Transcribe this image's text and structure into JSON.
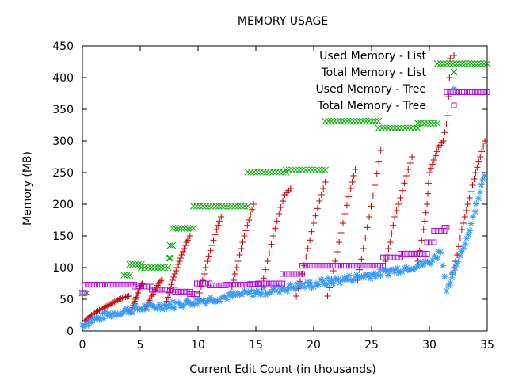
{
  "chart_data": {
    "type": "scatter",
    "title": "MEMORY USAGE",
    "xlabel": "Current Edit Count (in thousands)",
    "ylabel": "Memory (MB)",
    "xlim": [
      0,
      35
    ],
    "ylim": [
      0,
      450
    ],
    "xticks": [
      0,
      5,
      10,
      15,
      20,
      25,
      30,
      35
    ],
    "yticks": [
      0,
      50,
      100,
      150,
      200,
      250,
      300,
      350,
      400,
      450
    ],
    "grid": false,
    "legend_position": "top-right",
    "series": [
      {
        "name": "Used Memory - List",
        "marker": "plus",
        "color": "#cc0000",
        "points": [
          [
            0.2,
            15
          ],
          [
            0.5,
            20
          ],
          [
            0.8,
            25
          ],
          [
            1.2,
            30
          ],
          [
            1.6,
            34
          ],
          [
            2.0,
            38
          ],
          [
            2.4,
            42
          ],
          [
            2.8,
            46
          ],
          [
            3.2,
            50
          ],
          [
            3.6,
            53
          ],
          [
            4.0,
            55
          ],
          [
            4.2,
            30
          ],
          [
            4.4,
            40
          ],
          [
            4.6,
            50
          ],
          [
            4.8,
            60
          ],
          [
            5.0,
            70
          ],
          [
            5.2,
            75
          ],
          [
            5.4,
            35
          ],
          [
            5.7,
            45
          ],
          [
            6.0,
            55
          ],
          [
            6.3,
            65
          ],
          [
            6.6,
            75
          ],
          [
            6.9,
            82
          ],
          [
            7.2,
            40
          ],
          [
            7.5,
            60
          ],
          [
            7.8,
            80
          ],
          [
            8.1,
            95
          ],
          [
            8.4,
            110
          ],
          [
            8.7,
            125
          ],
          [
            9.0,
            140
          ],
          [
            9.3,
            150
          ],
          [
            10.0,
            50
          ],
          [
            10.4,
            80
          ],
          [
            10.8,
            110
          ],
          [
            11.2,
            135
          ],
          [
            11.6,
            160
          ],
          [
            12.0,
            180
          ],
          [
            12.8,
            60
          ],
          [
            13.2,
            90
          ],
          [
            13.6,
            120
          ],
          [
            14.0,
            150
          ],
          [
            14.4,
            175
          ],
          [
            14.8,
            200
          ],
          [
            15.5,
            70
          ],
          [
            16.0,
            110
          ],
          [
            16.5,
            150
          ],
          [
            17.0,
            185
          ],
          [
            17.5,
            215
          ],
          [
            18.0,
            225
          ],
          [
            18.5,
            55
          ],
          [
            19.0,
            90
          ],
          [
            19.5,
            130
          ],
          [
            20.0,
            170
          ],
          [
            20.5,
            205
          ],
          [
            21.0,
            235
          ],
          [
            21.2,
            55
          ],
          [
            21.7,
            95
          ],
          [
            22.2,
            140
          ],
          [
            22.7,
            185
          ],
          [
            23.2,
            225
          ],
          [
            23.6,
            255
          ],
          [
            23.8,
            80
          ],
          [
            24.3,
            130
          ],
          [
            24.8,
            180
          ],
          [
            25.3,
            230
          ],
          [
            25.8,
            285
          ],
          [
            26.2,
            110
          ],
          [
            26.6,
            140
          ],
          [
            27.0,
            180
          ],
          [
            27.5,
            210
          ],
          [
            28.0,
            245
          ],
          [
            28.5,
            275
          ],
          [
            29.0,
            110
          ],
          [
            29.5,
            160
          ],
          [
            29.8,
            200
          ],
          [
            30.0,
            250
          ],
          [
            30.4,
            270
          ],
          [
            30.8,
            290
          ],
          [
            31.2,
            300
          ],
          [
            31.6,
            340
          ],
          [
            31.8,
            430
          ],
          [
            32.0,
            90
          ],
          [
            32.4,
            120
          ],
          [
            32.8,
            160
          ],
          [
            33.2,
            190
          ],
          [
            33.6,
            220
          ],
          [
            34.0,
            250
          ],
          [
            34.4,
            275
          ],
          [
            34.8,
            300
          ]
        ]
      },
      {
        "name": "Total Memory - List",
        "marker": "cross",
        "color": "#00aa00",
        "segments": [
          [
            0.0,
            0.4,
            60
          ],
          [
            3.6,
            4.1,
            88
          ],
          [
            4.1,
            5.1,
            105
          ],
          [
            5.1,
            7.4,
            100
          ],
          [
            7.5,
            7.6,
            115
          ],
          [
            7.6,
            7.8,
            135
          ],
          [
            7.8,
            9.6,
            162
          ],
          [
            9.6,
            14.3,
            197
          ],
          [
            14.3,
            17.6,
            251
          ],
          [
            17.6,
            21.0,
            254
          ],
          [
            21.0,
            25.6,
            331
          ],
          [
            25.6,
            29.0,
            320
          ],
          [
            29.0,
            30.7,
            328
          ],
          [
            30.7,
            35.0,
            422
          ]
        ]
      },
      {
        "name": "Used Memory - Tree",
        "marker": "star",
        "color": "#3399ff",
        "trend": [
          [
            0.0,
            10
          ],
          [
            2.0,
            25
          ],
          [
            4.0,
            33
          ],
          [
            6.0,
            38
          ],
          [
            8.0,
            42
          ],
          [
            10.0,
            47
          ],
          [
            12.0,
            53
          ],
          [
            14.0,
            58
          ],
          [
            16.0,
            63
          ],
          [
            18.0,
            69
          ],
          [
            20.0,
            74
          ],
          [
            22.0,
            80
          ],
          [
            24.0,
            86
          ],
          [
            26.0,
            92
          ],
          [
            28.0,
            100
          ],
          [
            30.0,
            108
          ],
          [
            31.0,
            125
          ],
          [
            31.5,
            65
          ],
          [
            32.5,
            110
          ],
          [
            33.5,
            160
          ],
          [
            34.5,
            230
          ],
          [
            35.0,
            255
          ]
        ]
      },
      {
        "name": "Total Memory - Tree",
        "marker": "square",
        "color": "#b300e6",
        "segments": [
          [
            0.0,
            0.2,
            60
          ],
          [
            0.2,
            4.5,
            73
          ],
          [
            4.5,
            6.0,
            70
          ],
          [
            6.0,
            8.0,
            65
          ],
          [
            8.0,
            9.3,
            62
          ],
          [
            9.3,
            9.9,
            58
          ],
          [
            9.9,
            11.0,
            75
          ],
          [
            11.0,
            12.4,
            72
          ],
          [
            12.4,
            14.5,
            73
          ],
          [
            14.5,
            15.2,
            74
          ],
          [
            15.2,
            17.3,
            75
          ],
          [
            17.3,
            19.0,
            90
          ],
          [
            19.0,
            26.0,
            103
          ],
          [
            26.0,
            27.5,
            116
          ],
          [
            27.5,
            29.8,
            122
          ],
          [
            29.8,
            30.4,
            140
          ],
          [
            30.4,
            31.3,
            158
          ],
          [
            31.3,
            31.5,
            163
          ],
          [
            31.5,
            35.0,
            377
          ]
        ]
      }
    ]
  }
}
